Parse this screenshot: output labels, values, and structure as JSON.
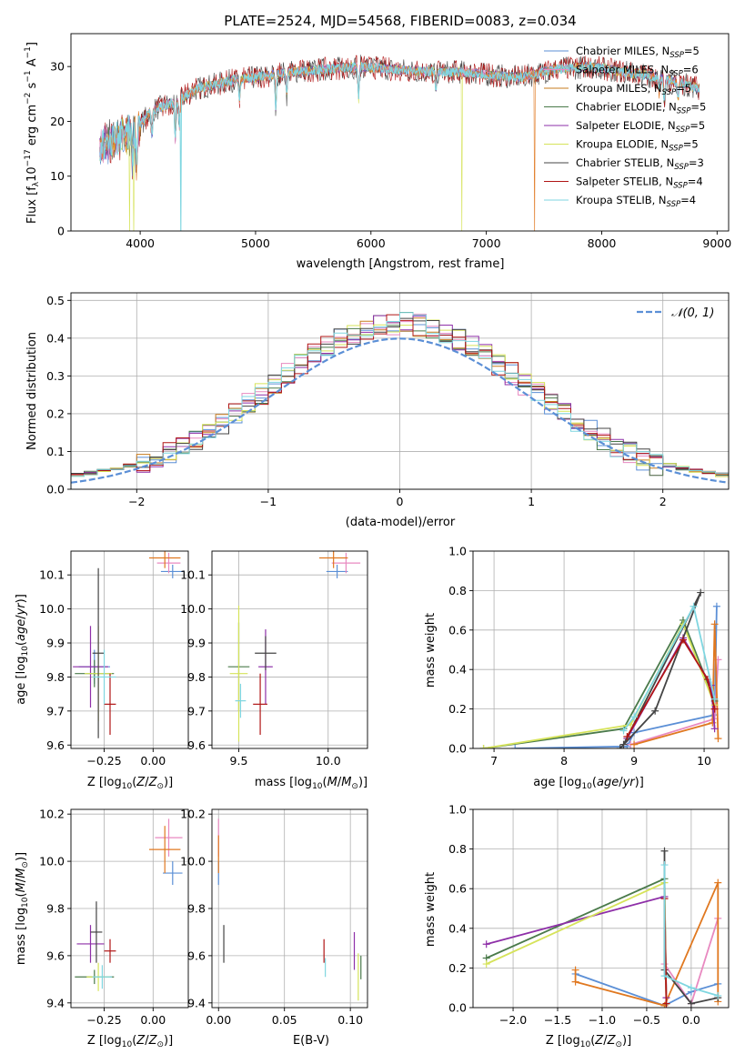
{
  "colors": {
    "chabrier_miles": "#5b8fd6",
    "salpeter_miles": "#e889c0",
    "kroupa_miles": "#c77b1e",
    "chabrier_elodie": "#4a7a4a",
    "salpeter_elodie": "#8e2fa8",
    "kroupa_elodie": "#d6e35a",
    "chabrier_stelib": "#444444",
    "salpeter_stelib": "#b01515",
    "kroupa_stelib": "#7fd6e0",
    "orange": "#e07820",
    "gauss": "#5b8fd6"
  },
  "chart_data": [
    {
      "id": "spectrum",
      "type": "line",
      "title": "PLATE=2524, MJD=54568, FIBERID=0083, z=0.034",
      "xlabel": "wavelength [Angstrom, rest frame]",
      "ylabel": "Flux [f",
      "xlim": [
        3400,
        9100
      ],
      "ylim": [
        0,
        36
      ],
      "xticks": [
        "4000",
        "5000",
        "6000",
        "7000",
        "8000",
        "9000"
      ],
      "yticks": [
        "0",
        "10",
        "20",
        "30"
      ],
      "grid": false,
      "legend_position": "top-right",
      "legend": [
        {
          "main": "Chabrier MILES, N",
          "sub": "SSP",
          "tail": "=5",
          "color": "chabrier_miles"
        },
        {
          "main": "Salpeter MILES, N",
          "sub": "SSP",
          "tail": "=6",
          "color": "salpeter_miles"
        },
        {
          "main": "Kroupa MILES, N",
          "sub": "SSP",
          "tail": "=5",
          "color": "kroupa_miles"
        },
        {
          "main": "Chabrier ELODIE, N",
          "sub": "SSP",
          "tail": "=5",
          "color": "chabrier_elodie"
        },
        {
          "main": "Salpeter ELODIE, N",
          "sub": "SSP",
          "tail": "=5",
          "color": "salpeter_elodie"
        },
        {
          "main": "Kroupa ELODIE, N",
          "sub": "SSP",
          "tail": "=5",
          "color": "kroupa_elodie"
        },
        {
          "main": "Chabrier STELIB, N",
          "sub": "SSP",
          "tail": "=3",
          "color": "chabrier_stelib"
        },
        {
          "main": "Salpeter STELIB, N",
          "sub": "SSP",
          "tail": "=4",
          "color": "salpeter_stelib"
        },
        {
          "main": "Kroupa STELIB, N",
          "sub": "SSP",
          "tail": "=4",
          "color": "kroupa_stelib"
        }
      ],
      "continuum": [
        [
          3650,
          15
        ],
        [
          3800,
          17
        ],
        [
          3950,
          18
        ],
        [
          4100,
          22
        ],
        [
          4300,
          23.5
        ],
        [
          4500,
          26
        ],
        [
          4800,
          27.5
        ],
        [
          5000,
          28
        ],
        [
          5300,
          29
        ],
        [
          5600,
          29.5
        ],
        [
          5900,
          30
        ],
        [
          6200,
          29.5
        ],
        [
          6500,
          29
        ],
        [
          6800,
          29
        ],
        [
          7000,
          28.5
        ],
        [
          7300,
          28
        ],
        [
          7600,
          29.5
        ],
        [
          7900,
          30
        ],
        [
          8200,
          29
        ],
        [
          8500,
          28
        ],
        [
          8850,
          26
        ]
      ],
      "absorption_lines": [
        [
          3934,
          5
        ],
        [
          3969,
          6
        ],
        [
          4102,
          5
        ],
        [
          4304,
          7
        ],
        [
          4340,
          5
        ],
        [
          4861,
          4
        ],
        [
          5175,
          6
        ],
        [
          5270,
          4
        ],
        [
          5893,
          6
        ],
        [
          6563,
          3
        ],
        [
          8498,
          3
        ],
        [
          8542,
          4
        ],
        [
          8662,
          3
        ]
      ],
      "dropouts": [
        [
          3910,
          "kroupa_elodie"
        ],
        [
          3945,
          "kroupa_elodie"
        ],
        [
          4350,
          "kroupa_stelib"
        ],
        [
          6790,
          "kroupa_elodie"
        ],
        [
          7420,
          "orange"
        ]
      ]
    },
    {
      "id": "residuals",
      "type": "histogram",
      "xlabel": "(data-model)/error",
      "ylabel": "Normed distribution",
      "xlim": [
        -2.5,
        2.5
      ],
      "ylim": [
        0,
        0.52
      ],
      "xticks": [
        "−2",
        "−1",
        "0",
        "1",
        "2"
      ],
      "yticks": [
        "0.0",
        "0.1",
        "0.2",
        "0.3",
        "0.4",
        "0.5"
      ],
      "grid": true,
      "legend_position": "top-right",
      "gauss_label": "𝒩(0, 1)",
      "bin_width": 0.1
    },
    {
      "id": "z_age",
      "type": "scatter",
      "xlabel": "Z [log",
      "ylabel": "age  [log",
      "xlim": [
        -0.42,
        0.18
      ],
      "ylim": [
        9.59,
        10.17
      ],
      "xticks": [
        [
          "-0.25",
          "−0.25"
        ],
        [
          "0",
          "0.00"
        ]
      ],
      "yticks": [
        "9.6",
        "9.7",
        "9.8",
        "9.9",
        "10.0",
        "10.1"
      ],
      "grid": true,
      "points": [
        {
          "x": -0.3,
          "y": 9.83,
          "xe": 0.08,
          "ye": 0.05,
          "c": "chabrier_miles"
        },
        {
          "x": 0.1,
          "y": 10.11,
          "xe": 0.06,
          "ye": 0.02,
          "c": "chabrier_miles"
        },
        {
          "x": 0.08,
          "y": 10.135,
          "xe": 0.06,
          "ye": 0.03,
          "c": "salpeter_miles"
        },
        {
          "x": 0.06,
          "y": 10.15,
          "xe": 0.08,
          "ye": 0.03,
          "c": "kroupa_miles"
        },
        {
          "x": -0.3,
          "y": 9.81,
          "xe": 0.1,
          "ye": 0.04,
          "c": "chabrier_elodie"
        },
        {
          "x": -0.32,
          "y": 9.83,
          "xe": 0.09,
          "ye": 0.12,
          "c": "salpeter_elodie"
        },
        {
          "x": -0.28,
          "y": 9.81,
          "xe": 0.07,
          "ye": 0.14,
          "c": "kroupa_elodie"
        },
        {
          "x": -0.28,
          "y": 9.87,
          "xe": 0.03,
          "ye": 0.25,
          "c": "chabrier_stelib"
        },
        {
          "x": -0.22,
          "y": 9.72,
          "xe": 0.03,
          "ye": 0.09,
          "c": "salpeter_stelib"
        },
        {
          "x": -0.25,
          "y": 9.8,
          "xe": 0.06,
          "ye": 0.08,
          "c": "kroupa_stelib"
        }
      ]
    },
    {
      "id": "mass_age",
      "type": "scatter",
      "xlabel": "mass [log",
      "ylabel": "",
      "xlim": [
        9.35,
        10.22
      ],
      "ylim": [
        9.59,
        10.17
      ],
      "xticks": [
        [
          "9.5",
          "9.5"
        ],
        [
          "10",
          "10.0"
        ]
      ],
      "yticks": [
        "9.6",
        "9.7",
        "9.8",
        "9.9",
        "10.0",
        "10.1"
      ],
      "grid": true,
      "points": [
        {
          "x": 10.05,
          "y": 10.11,
          "xe": 0.06,
          "ye": 0.02,
          "c": "chabrier_miles"
        },
        {
          "x": 10.1,
          "y": 10.135,
          "xe": 0.08,
          "ye": 0.03,
          "c": "salpeter_miles"
        },
        {
          "x": 10.03,
          "y": 10.15,
          "xe": 0.08,
          "ye": 0.03,
          "c": "kroupa_miles"
        },
        {
          "x": 9.5,
          "y": 9.83,
          "xe": 0.06,
          "ye": 0.13,
          "c": "chabrier_elodie"
        },
        {
          "x": 9.65,
          "y": 9.83,
          "xe": 0.04,
          "ye": 0.11,
          "c": "salpeter_elodie"
        },
        {
          "x": 9.5,
          "y": 9.81,
          "xe": 0.05,
          "ye": 0.2,
          "c": "kroupa_elodie"
        },
        {
          "x": 9.65,
          "y": 9.87,
          "xe": 0.06,
          "ye": 0.05,
          "c": "chabrier_stelib"
        },
        {
          "x": 9.62,
          "y": 9.72,
          "xe": 0.04,
          "ye": 0.09,
          "c": "salpeter_stelib"
        },
        {
          "x": 9.51,
          "y": 9.73,
          "xe": 0.03,
          "ye": 0.05,
          "c": "kroupa_stelib"
        }
      ]
    },
    {
      "id": "age_weight",
      "type": "line",
      "xlabel": "age  [log",
      "ylabel": "mass weight",
      "xlim": [
        6.7,
        10.35
      ],
      "ylim": [
        0,
        1
      ],
      "xticks": [
        "7",
        "8",
        "9",
        "10"
      ],
      "yticks": [
        "0.0",
        "0.2",
        "0.4",
        "0.6",
        "0.8",
        "1.0"
      ],
      "grid": true,
      "series": [
        {
          "c": "chabrier_miles",
          "pts": [
            [
              7.3,
              0.0
            ],
            [
              8.9,
              0.01
            ],
            [
              9.0,
              0.08
            ],
            [
              10.15,
              0.17
            ],
            [
              10.18,
              0.72
            ]
          ]
        },
        {
          "c": "salpeter_miles",
          "pts": [
            [
              8.95,
              0.02
            ],
            [
              10.15,
              0.15
            ],
            [
              10.2,
              0.45
            ]
          ]
        },
        {
          "c": "kroupa_miles",
          "pts": [
            [
              9.0,
              0.02
            ],
            [
              10.12,
              0.13
            ],
            [
              10.15,
              0.63
            ],
            [
              10.2,
              0.05
            ]
          ]
        },
        {
          "c": "chabrier_elodie",
          "pts": [
            [
              6.85,
              0.0
            ],
            [
              8.85,
              0.1
            ],
            [
              9.7,
              0.65
            ],
            [
              10.15,
              0.24
            ]
          ]
        },
        {
          "c": "salpeter_elodie",
          "pts": [
            [
              8.9,
              0.05
            ],
            [
              9.7,
              0.56
            ],
            [
              10.1,
              0.32
            ],
            [
              10.15,
              0.1
            ]
          ]
        },
        {
          "c": "kroupa_elodie",
          "pts": [
            [
              6.85,
              0.0
            ],
            [
              8.95,
              0.12
            ],
            [
              9.7,
              0.63
            ],
            [
              10.15,
              0.22
            ]
          ]
        },
        {
          "c": "chabrier_stelib",
          "pts": [
            [
              8.8,
              0.0
            ],
            [
              9.3,
              0.19
            ],
            [
              9.95,
              0.79
            ],
            [
              8.85,
              0.02
            ]
          ]
        },
        {
          "c": "salpeter_stelib",
          "pts": [
            [
              8.9,
              0.06
            ],
            [
              9.7,
              0.55
            ],
            [
              10.05,
              0.35
            ],
            [
              10.15,
              0.2
            ]
          ]
        },
        {
          "c": "kroupa_stelib",
          "pts": [
            [
              8.85,
              0.09
            ],
            [
              9.0,
              0.16
            ],
            [
              9.85,
              0.72
            ],
            [
              10.15,
              0.25
            ]
          ]
        }
      ]
    },
    {
      "id": "z_mass",
      "type": "scatter",
      "xlabel": "Z [log",
      "ylabel": "mass [log",
      "xlim": [
        -0.42,
        0.18
      ],
      "ylim": [
        9.38,
        10.22
      ],
      "xticks": [
        [
          "-0.25",
          "−0.25"
        ],
        [
          "0",
          "0.00"
        ]
      ],
      "yticks": [
        "9.4",
        "9.6",
        "9.8",
        "10.0",
        "10.2"
      ],
      "grid": true,
      "points": [
        {
          "x": 0.1,
          "y": 9.95,
          "xe": 0.05,
          "ye": 0.05,
          "c": "chabrier_miles"
        },
        {
          "x": 0.08,
          "y": 10.1,
          "xe": 0.07,
          "ye": 0.08,
          "c": "salpeter_miles"
        },
        {
          "x": 0.06,
          "y": 10.05,
          "xe": 0.08,
          "ye": 0.1,
          "c": "kroupa_miles"
        },
        {
          "x": -0.3,
          "y": 9.51,
          "xe": 0.1,
          "ye": 0.03,
          "c": "chabrier_elodie"
        },
        {
          "x": -0.32,
          "y": 9.65,
          "xe": 0.07,
          "ye": 0.08,
          "c": "salpeter_elodie"
        },
        {
          "x": -0.28,
          "y": 9.51,
          "xe": 0.06,
          "ye": 0.06,
          "c": "kroupa_elodie"
        },
        {
          "x": -0.29,
          "y": 9.7,
          "xe": 0.03,
          "ye": 0.13,
          "c": "chabrier_stelib"
        },
        {
          "x": -0.22,
          "y": 9.62,
          "xe": 0.03,
          "ye": 0.05,
          "c": "salpeter_stelib"
        },
        {
          "x": -0.26,
          "y": 9.51,
          "xe": 0.05,
          "ye": 0.05,
          "c": "kroupa_stelib"
        }
      ]
    },
    {
      "id": "ebv_mass",
      "type": "scatter",
      "xlabel": "E(B-V)",
      "ylabel": "",
      "xlim": [
        -0.005,
        0.113
      ],
      "ylim": [
        9.38,
        10.22
      ],
      "xticks": [
        [
          "0",
          "0.00"
        ],
        [
          "0.05",
          "0.05"
        ],
        [
          "0.1",
          "0.10"
        ]
      ],
      "yticks": [
        "9.4",
        "9.6",
        "9.8",
        "10.0",
        "10.2"
      ],
      "grid": true,
      "points": [
        {
          "x": 0.0,
          "y": 9.95,
          "xe": 0,
          "ye": 0.05,
          "c": "chabrier_miles"
        },
        {
          "x": 0.0,
          "y": 10.1,
          "xe": 0,
          "ye": 0.08,
          "c": "salpeter_miles"
        },
        {
          "x": 0.0,
          "y": 10.03,
          "xe": 0,
          "ye": 0.08,
          "c": "kroupa_miles"
        },
        {
          "x": 0.004,
          "y": 9.65,
          "xe": 0,
          "ye": 0.08,
          "c": "chabrier_stelib"
        },
        {
          "x": 0.08,
          "y": 9.62,
          "xe": 0,
          "ye": 0.05,
          "c": "salpeter_stelib"
        },
        {
          "x": 0.081,
          "y": 9.55,
          "xe": 0,
          "ye": 0.04,
          "c": "kroupa_stelib"
        },
        {
          "x": 0.103,
          "y": 9.62,
          "xe": 0,
          "ye": 0.08,
          "c": "salpeter_elodie"
        },
        {
          "x": 0.106,
          "y": 9.51,
          "xe": 0,
          "ye": 0.1,
          "c": "kroupa_elodie"
        },
        {
          "x": 0.108,
          "y": 9.55,
          "xe": 0,
          "ye": 0.05,
          "c": "chabrier_elodie"
        }
      ]
    },
    {
      "id": "z_weight",
      "type": "line",
      "xlabel": "Z [log",
      "ylabel": "mass weight",
      "xlim": [
        -2.45,
        0.42
      ],
      "ylim": [
        0,
        1
      ],
      "xticks": [
        [
          "-2",
          "−2.0"
        ],
        [
          "-1.5",
          "−1.5"
        ],
        [
          "-1",
          "−1.0"
        ],
        [
          "-0.5",
          "−0.5"
        ],
        [
          "0",
          "0.0"
        ]
      ],
      "yticks": [
        "0.0",
        "0.2",
        "0.4",
        "0.6",
        "0.8",
        "1.0"
      ],
      "grid": true,
      "series": [
        {
          "c": "chabrier_miles",
          "pts": [
            [
              -1.3,
              0.17
            ],
            [
              -0.3,
              0.01
            ],
            [
              0.0,
              0.08
            ],
            [
              0.3,
              0.12
            ]
          ]
        },
        {
          "c": "salpeter_miles",
          "pts": [
            [
              -0.3,
              0.22
            ],
            [
              0.0,
              0.02
            ],
            [
              0.3,
              0.45
            ]
          ]
        },
        {
          "c": "kroupa_miles",
          "pts": [
            [
              -1.3,
              0.19
            ],
            [
              -1.3,
              0.13
            ],
            [
              -0.3,
              0.01
            ],
            [
              0.3,
              0.63
            ],
            [
              0.3,
              0.03
            ]
          ]
        },
        {
          "c": "chabrier_elodie",
          "pts": [
            [
              -2.3,
              0.25
            ],
            [
              -0.3,
              0.65
            ],
            [
              -0.28,
              0.02
            ]
          ]
        },
        {
          "c": "salpeter_elodie",
          "pts": [
            [
              -2.3,
              0.32
            ],
            [
              -0.3,
              0.56
            ],
            [
              -0.28,
              0.05
            ]
          ]
        },
        {
          "c": "kroupa_elodie",
          "pts": [
            [
              -2.3,
              0.22
            ],
            [
              -0.3,
              0.63
            ],
            [
              -0.28,
              0.02
            ]
          ]
        },
        {
          "c": "chabrier_stelib",
          "pts": [
            [
              -0.3,
              0.79
            ],
            [
              -0.3,
              0.19
            ],
            [
              0.0,
              0.02
            ],
            [
              0.3,
              0.05
            ]
          ]
        },
        {
          "c": "salpeter_stelib",
          "pts": [
            [
              -0.3,
              0.55
            ],
            [
              -0.28,
              0.02
            ]
          ]
        },
        {
          "c": "kroupa_stelib",
          "pts": [
            [
              -0.3,
              0.72
            ],
            [
              -0.3,
              0.16
            ],
            [
              0.0,
              0.1
            ],
            [
              0.3,
              0.06
            ]
          ]
        }
      ]
    }
  ]
}
